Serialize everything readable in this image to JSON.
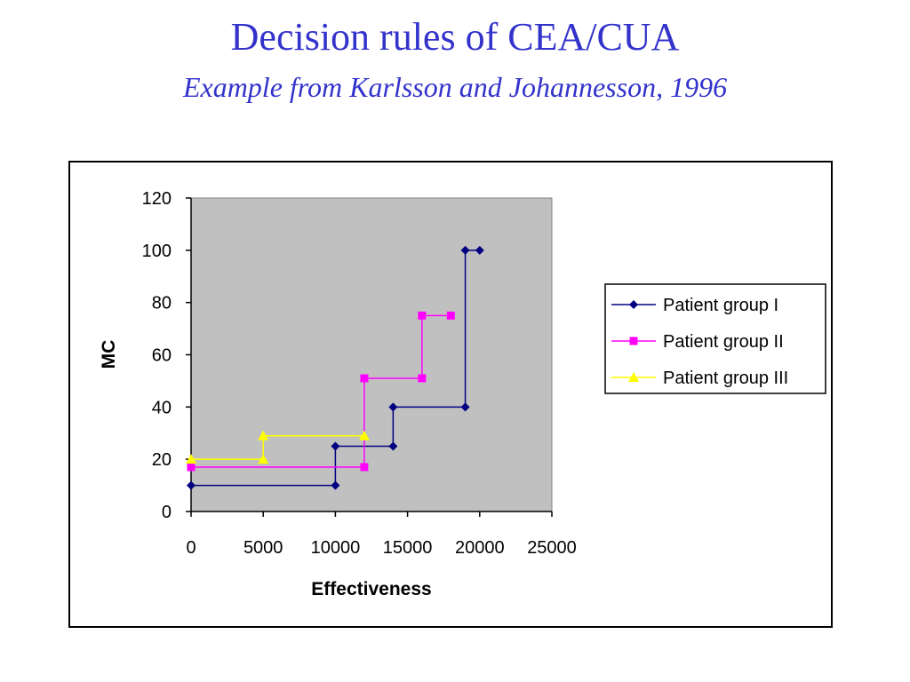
{
  "slide": {
    "title": "Decision rules of CEA/CUA",
    "subtitle": "Example from Karlsson and Johannesson, 1996"
  },
  "chart_data": {
    "type": "line",
    "xlabel": "Effectiveness",
    "ylabel": "MC",
    "xlim": [
      0,
      25000
    ],
    "ylim": [
      0,
      120
    ],
    "xticks": [
      "0",
      "5000",
      "10000",
      "15000",
      "20000",
      "25000"
    ],
    "yticks": [
      "0",
      "20",
      "40",
      "60",
      "80",
      "100",
      "120"
    ],
    "plot_background": "#c0c0c0",
    "grid": false,
    "legend_position": "right",
    "series": [
      {
        "name": "Patient group I",
        "color": "#000080",
        "marker": "diamond",
        "points": [
          [
            0,
            10
          ],
          [
            10000,
            10
          ],
          [
            10000,
            25
          ],
          [
            14000,
            25
          ],
          [
            14000,
            40
          ],
          [
            19000,
            40
          ],
          [
            19000,
            100
          ],
          [
            20000,
            100
          ]
        ]
      },
      {
        "name": "Patient group II",
        "color": "#ff00ff",
        "marker": "square",
        "points": [
          [
            0,
            17
          ],
          [
            12000,
            17
          ],
          [
            12000,
            51
          ],
          [
            16000,
            51
          ],
          [
            16000,
            75
          ],
          [
            18000,
            75
          ]
        ]
      },
      {
        "name": "Patient group III",
        "color": "#ffff00",
        "marker": "triangle",
        "points": [
          [
            0,
            20
          ],
          [
            5000,
            20
          ],
          [
            5000,
            29
          ],
          [
            12000,
            29
          ]
        ]
      }
    ]
  }
}
